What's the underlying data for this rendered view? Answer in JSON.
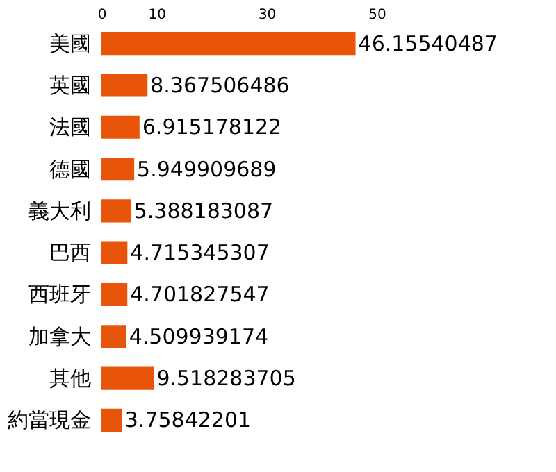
{
  "chart_data": {
    "type": "bar",
    "orientation": "horizontal",
    "categories": [
      "美國",
      "英國",
      "法國",
      "德國",
      "義大利",
      "巴西",
      "西班牙",
      "加拿大",
      "其他",
      "約當現金"
    ],
    "values": [
      46.15540487,
      8.367506486,
      6.915178122,
      5.949909689,
      5.388183087,
      4.715345307,
      4.701827547,
      4.509939174,
      9.518283705,
      3.75842201
    ],
    "color": "#e8540a",
    "xlim": [
      0,
      50
    ],
    "xticks": [
      0,
      10,
      30,
      50
    ],
    "data_labels": true,
    "grid": false
  }
}
